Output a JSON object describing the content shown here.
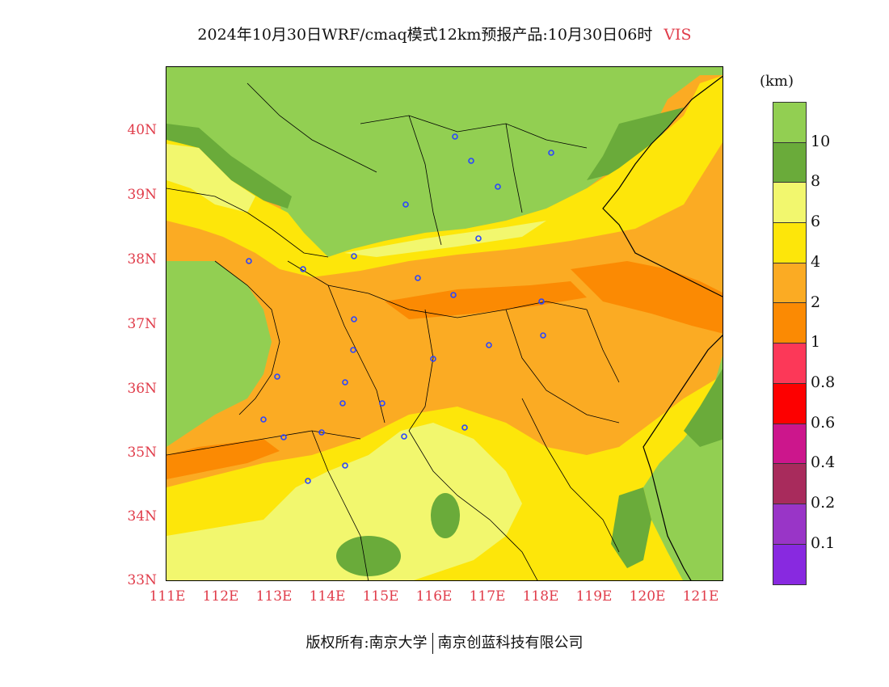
{
  "title": {
    "main": "2024年10月30日WRF/cmaq模式12km预报产品:10月30日06时",
    "variable": "VIS"
  },
  "axes": {
    "lat_labels": [
      "40N",
      "39N",
      "38N",
      "37N",
      "36N",
      "35N",
      "34N",
      "33N"
    ],
    "lon_labels": [
      "111E",
      "112E",
      "113E",
      "114E",
      "115E",
      "116E",
      "117E",
      "118E",
      "119E",
      "120E",
      "121E"
    ],
    "lat_range": [
      33,
      41
    ],
    "lon_range": [
      111,
      121.4
    ]
  },
  "colorbar": {
    "unit": "(km)",
    "levels": [
      "10",
      "8",
      "6",
      "4",
      "2",
      "1",
      "0.8",
      "0.6",
      "0.4",
      "0.2",
      "0.1"
    ],
    "colors": [
      "#92cf52",
      "#6aab3a",
      "#f2f76e",
      "#fde60a",
      "#fbab23",
      "#fb8a03",
      "#fc3858",
      "#fd0000",
      "#cc168c",
      "#a82b5c",
      "#9935c7",
      "#8829e0"
    ]
  },
  "stations_color": "#2a45ff",
  "footer": {
    "copyright": "版权所有:南京大学",
    "company": "南京创蓝科技有限公司"
  }
}
